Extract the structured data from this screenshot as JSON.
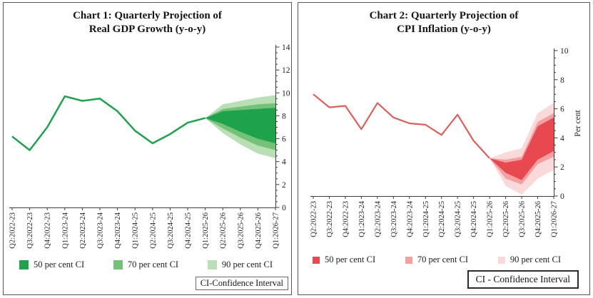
{
  "chart_data": [
    {
      "id": "gdp",
      "type": "line",
      "subtype": "fan-chart",
      "title_lines": [
        "Chart 1: Quarterly Projection of",
        "Real GDP Growth (y-o-y)"
      ],
      "title": "Chart 1: Quarterly Projection of Real GDP Growth (y-o-y)",
      "categories": [
        "Q2:2022-23",
        "Q3:2022-23",
        "Q4:2022-23",
        "Q1:2023-24",
        "Q2:2023-24",
        "Q3:2023-24",
        "Q4:2023-24",
        "Q1:2024-25",
        "Q2:2024-25",
        "Q3:2024-25",
        "Q4:2024-25",
        "Q1:2025-26",
        "Q2:2025-26",
        "Q3:2025-26",
        "Q4:2025-26",
        "Q1:2026-27"
      ],
      "line_series": {
        "name": "Real GDP growth (y-o-y)",
        "values": [
          6.2,
          5.0,
          7.0,
          9.7,
          9.3,
          9.5,
          8.4,
          6.7,
          5.6,
          6.4,
          7.4,
          7.8
        ]
      },
      "fan": {
        "start_category": "Q1:2025-26",
        "start_index": 11,
        "start_value": 7.8,
        "projection_categories": [
          "Q2:2025-26",
          "Q3:2025-26",
          "Q4:2025-26",
          "Q1:2026-27"
        ],
        "bands": [
          {
            "name": "50 per cent CI",
            "color": "#1ea24c",
            "upper": [
              8.4,
              8.5,
              8.6,
              8.7
            ],
            "lower": [
              7.3,
              6.6,
              6.0,
              5.6
            ]
          },
          {
            "name": "70 per cent CI",
            "color": "#76c178",
            "upper": [
              8.6,
              8.8,
              9.0,
              9.1
            ],
            "lower": [
              6.9,
              6.1,
              5.4,
              5.0
            ]
          },
          {
            "name": "90 per cent CI",
            "color": "#b9dfb6",
            "upper": [
              9.0,
              9.3,
              9.6,
              9.8
            ],
            "lower": [
              6.5,
              5.5,
              4.7,
              4.3
            ]
          }
        ]
      },
      "ylim": [
        0,
        14
      ],
      "y_major_step": 2,
      "y_minor_step": 0.5,
      "y_tick_labels": [
        "0",
        "2",
        "4",
        "6",
        "8",
        "10",
        "12",
        "14"
      ],
      "ylabel": "",
      "xlabel": "",
      "line_color": "#1ea24c",
      "legend_position": "bottom",
      "grid": false,
      "ci_note": "CI-Confidence Interval"
    },
    {
      "id": "cpi",
      "type": "line",
      "subtype": "fan-chart",
      "title_lines": [
        "Chart 2: Quarterly Projection of",
        "CPI Inflation (y-o-y)"
      ],
      "title": "Chart 2: Quarterly Projection of CPI Inflation (y-o-y)",
      "categories": [
        "Q2:2022-23",
        "Q3:2022-23",
        "Q4:2022-23",
        "Q1:2023-24",
        "Q2:2023-24",
        "Q3:2023-24",
        "Q4:2023-24",
        "Q1:2024-25",
        "Q2:2024-25",
        "Q3:2024-25",
        "Q4:2024-25",
        "Q1:2025-26",
        "Q2:2025-26",
        "Q3:2025-26",
        "Q4:2025-26",
        "Q1:2026-27"
      ],
      "line_series": {
        "name": "CPI inflation (y-o-y)",
        "values": [
          7.0,
          6.1,
          6.2,
          4.6,
          6.4,
          5.4,
          5.0,
          4.9,
          4.2,
          5.6,
          3.8,
          2.6
        ]
      },
      "fan": {
        "start_category": "Q1:2025-26",
        "start_index": 11,
        "start_value": 2.6,
        "projection_categories": [
          "Q2:2025-26",
          "Q3:2025-26",
          "Q4:2025-26",
          "Q1:2026-27"
        ],
        "bands": [
          {
            "name": "50 per cent CI",
            "color": "#e8484f",
            "upper": [
              2.3,
              2.5,
              4.8,
              5.4
            ],
            "lower": [
              1.6,
              1.1,
              2.5,
              3.1
            ]
          },
          {
            "name": "70 per cent CI",
            "color": "#f2a0a0",
            "upper": [
              2.5,
              2.7,
              5.1,
              5.7
            ],
            "lower": [
              1.2,
              0.8,
              2.2,
              2.7
            ]
          },
          {
            "name": "90 per cent CI",
            "color": "#f9d9d9",
            "upper": [
              3.0,
              3.3,
              5.7,
              6.4
            ],
            "lower": [
              0.7,
              0.1,
              1.2,
              1.8
            ]
          }
        ]
      },
      "ylim": [
        0,
        10
      ],
      "y_major_step": 2,
      "y_minor_step": 0.5,
      "y_tick_labels": [
        "0",
        "2",
        "4",
        "6",
        "8",
        "10"
      ],
      "ylabel": "Per cent",
      "xlabel": "",
      "line_color": "#dc5f5a",
      "legend_position": "bottom",
      "grid": false,
      "ci_note": "CI - Confidence Interval"
    }
  ]
}
